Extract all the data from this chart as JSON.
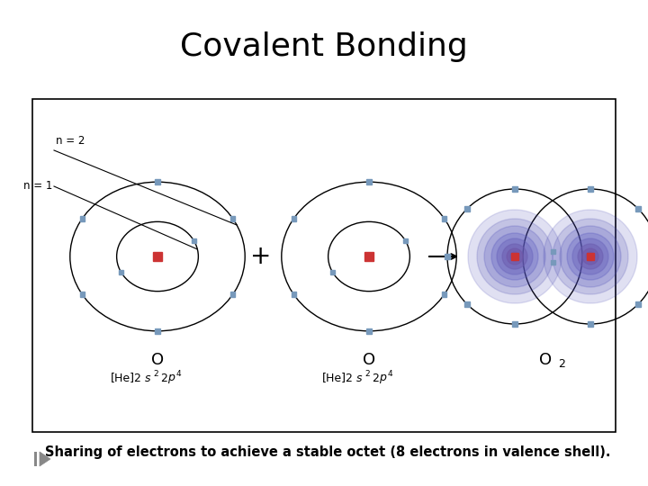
{
  "title": "Covalent Bonding",
  "title_fontsize": 26,
  "subtitle": "Sharing of electrons to achieve a stable octet (8 electrons in valence shell).",
  "subtitle_fontsize": 10.5,
  "background": "#ffffff",
  "box_color": "#000000",
  "n2_label": "n = 2",
  "n1_label": "n = 1",
  "electron_color": "#7799bb",
  "nucleus_color_red": "#cc3333",
  "fig_width": 7.2,
  "fig_height": 5.4,
  "fig_dpi": 100
}
